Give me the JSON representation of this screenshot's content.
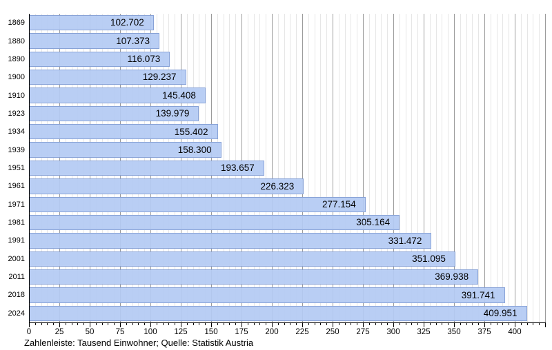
{
  "chart_data": {
    "type": "bar",
    "orientation": "horizontal",
    "title": "",
    "xlabel": "",
    "ylabel": "",
    "categories": [
      "1869",
      "1880",
      "1890",
      "1900",
      "1910",
      "1923",
      "1934",
      "1939",
      "1951",
      "1961",
      "1971",
      "1981",
      "1991",
      "2001",
      "2011",
      "2018",
      "2024"
    ],
    "values": [
      102.702,
      107.373,
      116.073,
      129.237,
      145.408,
      139.979,
      155.402,
      158.3,
      193.657,
      226.323,
      277.154,
      305.164,
      331.472,
      351.095,
      369.938,
      391.741,
      409.951
    ],
    "value_labels": [
      "102.702",
      "107.373",
      "116.073",
      "129.237",
      "145.408",
      "139.979",
      "155.402",
      "158.300",
      "193.657",
      "226.323",
      "277.154",
      "305.164",
      "331.472",
      "351.095",
      "369.938",
      "391.741",
      "409.951"
    ],
    "unit": "Tausend Einwohner",
    "xlim": [
      0,
      425
    ],
    "x_major_tick_step": 25,
    "x_minor_tick_step": 5,
    "x_tick_labels": [
      "0",
      "25",
      "50",
      "75",
      "100",
      "125",
      "150",
      "175",
      "200",
      "225",
      "250",
      "275",
      "300",
      "325",
      "350",
      "375",
      "400"
    ],
    "grid": "vertical",
    "legend_position": "none"
  },
  "footer": {
    "text": "Zahlenleiste: Tausend Einwohner; Quelle: Statistik Austria"
  },
  "colors": {
    "bar_fill": "#b4caf3",
    "bar_border": "#6e8cc8",
    "grid_minor": "#e6e6e6",
    "grid_major": "#9b9b9b",
    "axis": "#000000",
    "text": "#000000"
  }
}
